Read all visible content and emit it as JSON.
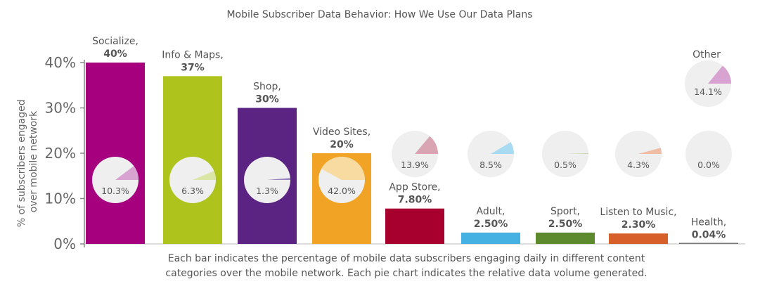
{
  "chart_data": {
    "type": "bar",
    "title": "Mobile Subscriber Data Behavior: How We Use Our Data Plans",
    "ylabel_lines": [
      "% of subscribers engaged",
      "over mobile network"
    ],
    "ylim": [
      0,
      40
    ],
    "yticks": [
      "0%",
      "10%",
      "20%",
      "30%",
      "40%"
    ],
    "ytick_values": [
      0,
      10,
      20,
      30,
      40
    ],
    "grid": false,
    "categories": [
      "Socialize,",
      "Info & Maps,",
      "Shop,",
      "Video Sites,",
      "App Store,",
      "Adult,",
      "Sport,",
      "Listen to Music,",
      "Health,"
    ],
    "values": [
      40,
      37,
      30,
      20,
      7.8,
      2.5,
      2.5,
      2.3,
      0.04
    ],
    "value_labels": [
      "40%",
      "37%",
      "30%",
      "20%",
      "7.80%",
      "2.50%",
      "2.50%",
      "2.30%",
      "0.04%"
    ],
    "bar_colors": [
      "#a6007f",
      "#aec31b",
      "#5b2382",
      "#f0a324",
      "#a8002e",
      "#45b0e2",
      "#5c8a2c",
      "#d7602a",
      "#777777"
    ],
    "pie_values": [
      10.3,
      6.3,
      1.3,
      42.0,
      13.9,
      8.5,
      0.5,
      4.3,
      0.0,
      14.1
    ],
    "pie_labels": [
      "10.3%",
      "6.3%",
      "1.3%",
      "42.0%",
      "13.9%",
      "8.5%",
      "0.5%",
      "4.3%",
      "0.0%",
      "14.1%"
    ],
    "pie_colors": [
      "#d8a3d0",
      "#d9e6a6",
      "#9a84bf",
      "#f7dba0",
      "#d9a5b3",
      "#a8daf1",
      "#c2d6a8",
      "#efbda6",
      "#cfcfcf",
      "#d8a3d0"
    ],
    "other_label": "Other",
    "caption_lines": [
      "Each bar indicates the percentage of mobile data subscribers engaging daily in different content",
      "categories over the mobile network. Each pie chart indicates the relative data volume generated."
    ]
  }
}
